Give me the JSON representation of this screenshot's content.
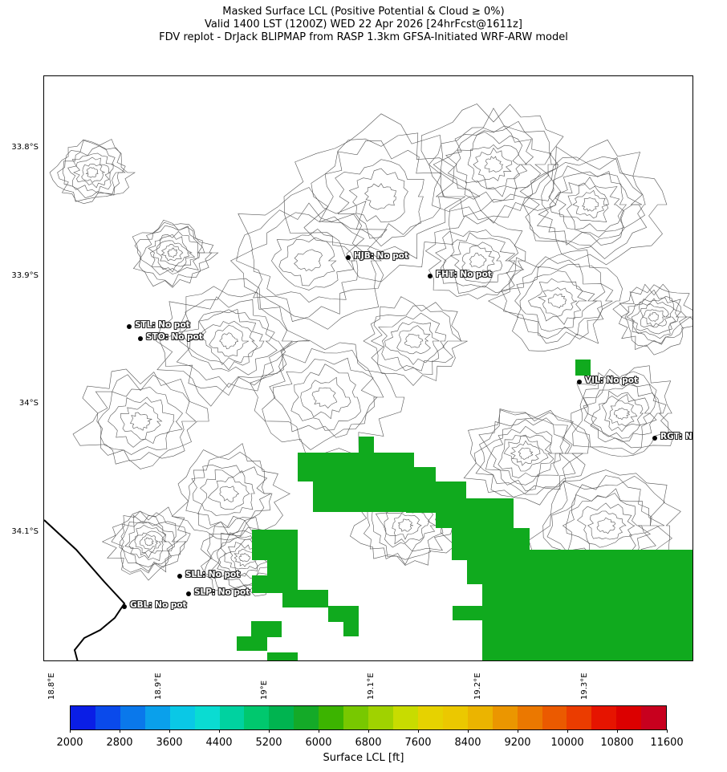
{
  "title": {
    "line1": "Masked Surface LCL (Positive Potential & Cloud ≥ 0%)",
    "line2": "Valid 1400 LST (1200Z) WED 22 Apr 2026 [24hrFcst@1611z]",
    "line3": "FDV replot - DrJack BLIPMAP from RASP 1.3km GFSA-Initiated WRF-ARW model"
  },
  "axes": {
    "lat_labels": [
      "33.8°S",
      "33.9°S",
      "34°S",
      "34.1°S"
    ],
    "lon_labels": [
      "18.8°E",
      "18.9°E",
      "19°E",
      "19.1°E",
      "19.2°E",
      "19.3°E"
    ]
  },
  "stations": [
    {
      "id": "HJB",
      "label": "HJB: No pot"
    },
    {
      "id": "FHT",
      "label": "FHT: No pot"
    },
    {
      "id": "STL",
      "label": "STL: No pot"
    },
    {
      "id": "STO",
      "label": "STO: No pot"
    },
    {
      "id": "VIL",
      "label": "VIL: No pot"
    },
    {
      "id": "RGT",
      "label": "RGT: No pot"
    },
    {
      "id": "SLL",
      "label": "SLL: No pot"
    },
    {
      "id": "SLP",
      "label": "SLP: No pot"
    },
    {
      "id": "GBL",
      "label": "GBL: No pot"
    }
  ],
  "colorbar": {
    "label": "Surface LCL [ft]",
    "ticks": [
      "2000",
      "2800",
      "3600",
      "4400",
      "5200",
      "6000",
      "6800",
      "7600",
      "8400",
      "9200",
      "10000",
      "10800",
      "11600"
    ],
    "colors": [
      "#0a1ee6",
      "#0a4aeb",
      "#0a78eb",
      "#0aa0eb",
      "#0ac8e6",
      "#0adcd2",
      "#00d2a0",
      "#00c86e",
      "#00b450",
      "#14aa28",
      "#3cb400",
      "#78c800",
      "#a0d200",
      "#c8dc00",
      "#e6d200",
      "#ebc800",
      "#ebb400",
      "#eb9600",
      "#eb7800",
      "#eb5a00",
      "#eb3c00",
      "#e61400",
      "#dc0000",
      "#c8001e"
    ]
  },
  "field_color": "#10aa1e"
}
